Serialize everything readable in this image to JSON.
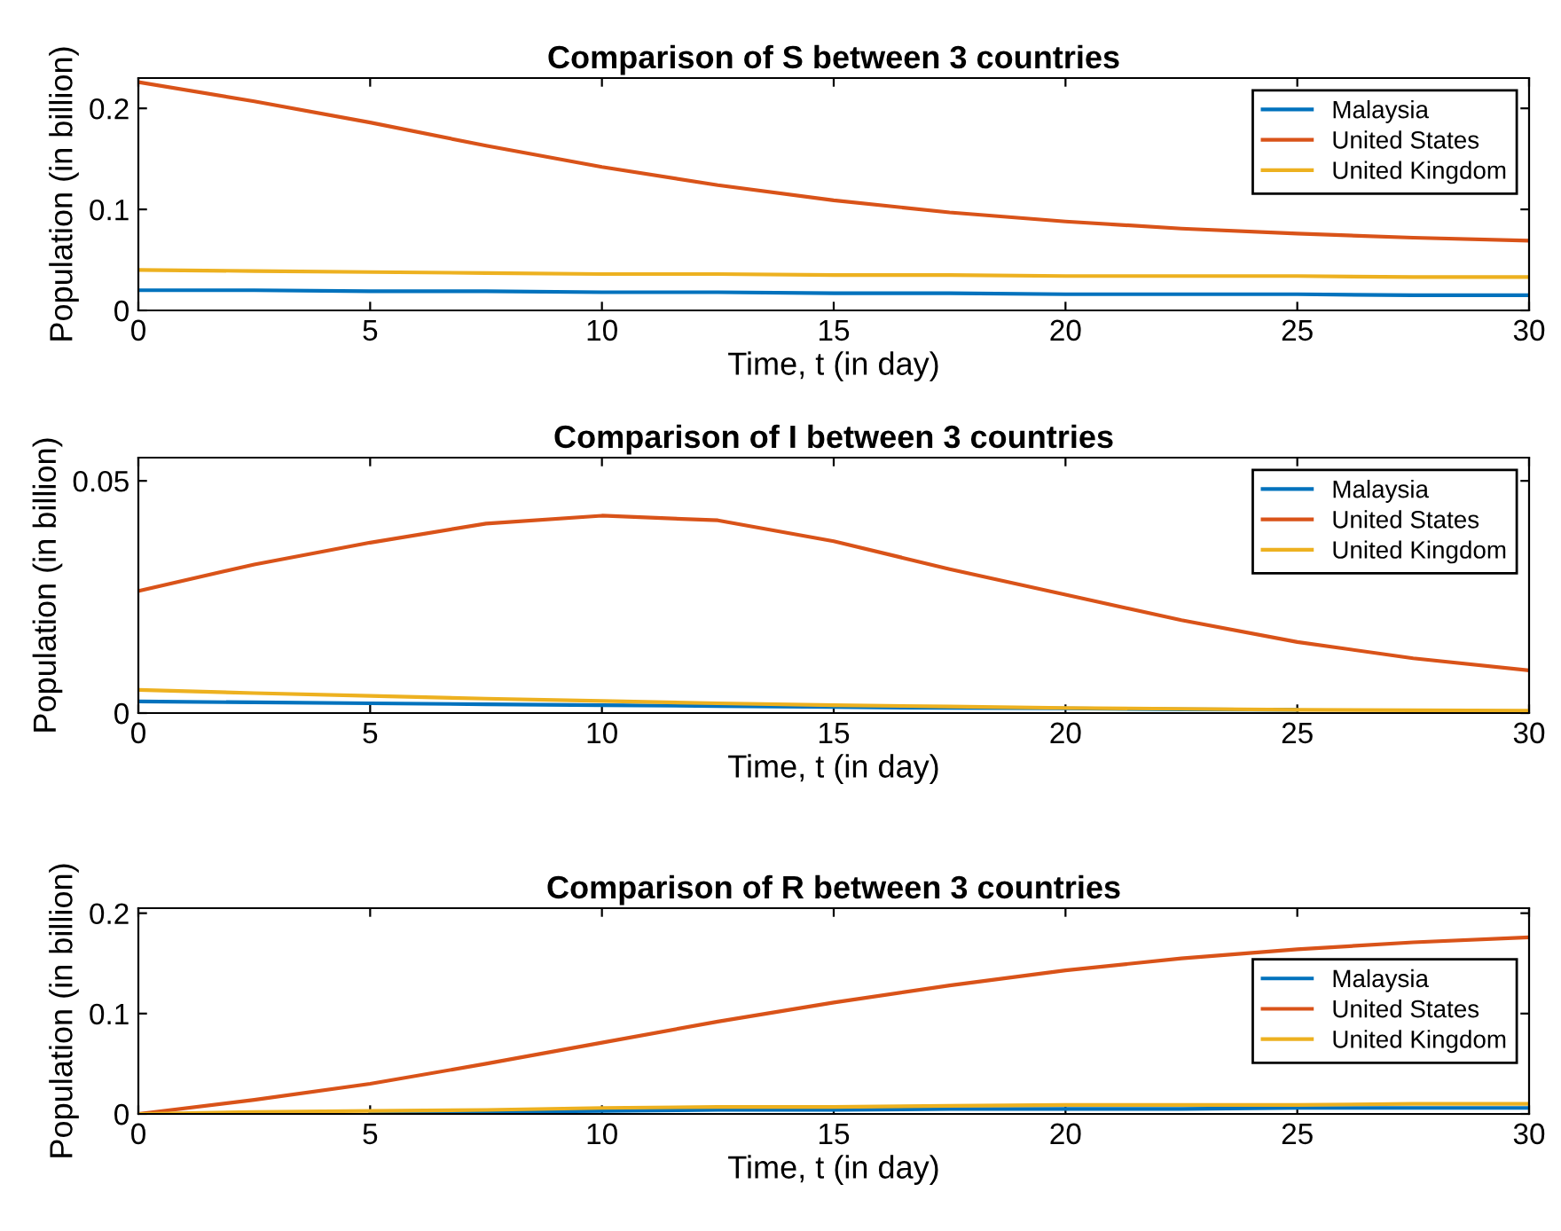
{
  "chart_data": [
    {
      "type": "line",
      "title": "Comparison of S between 3 countries",
      "xlabel": "Time, t (in day)",
      "ylabel": "Population (in billion)",
      "x": [
        0,
        2.5,
        5,
        7.5,
        10,
        12.5,
        15,
        17.5,
        20,
        22.5,
        25,
        27.5,
        30
      ],
      "xlim": [
        0,
        30
      ],
      "xticks": [
        0,
        5,
        10,
        15,
        20,
        25,
        30
      ],
      "ylim": [
        0,
        0.23
      ],
      "yticks": [
        0,
        0.1,
        0.2
      ],
      "legend": "top right",
      "grid": false,
      "series": [
        {
          "name": "Malaysia",
          "color": "#0072bd",
          "values": [
            0.02,
            0.02,
            0.019,
            0.019,
            0.018,
            0.018,
            0.017,
            0.017,
            0.016,
            0.016,
            0.016,
            0.015,
            0.015
          ]
        },
        {
          "name": "United States",
          "color": "#d95319",
          "values": [
            0.226,
            0.207,
            0.186,
            0.163,
            0.142,
            0.124,
            0.109,
            0.097,
            0.088,
            0.081,
            0.076,
            0.072,
            0.069
          ]
        },
        {
          "name": "United Kingdom",
          "color": "#edb120",
          "values": [
            0.04,
            0.039,
            0.038,
            0.037,
            0.036,
            0.036,
            0.035,
            0.035,
            0.034,
            0.034,
            0.034,
            0.033,
            0.033
          ]
        }
      ]
    },
    {
      "type": "line",
      "title": "Comparison of I between 3 countries",
      "xlabel": "Time, t (in day)",
      "ylabel": "Population (in billion)",
      "x": [
        0,
        2.5,
        5,
        7.5,
        10,
        12.5,
        15,
        17.5,
        20,
        22.5,
        25,
        27.5,
        30
      ],
      "xlim": [
        0,
        30
      ],
      "xticks": [
        0,
        5,
        10,
        15,
        20,
        25,
        30
      ],
      "ylim": [
        0,
        0.055
      ],
      "yticks": [
        0,
        0.05
      ],
      "legend": "top right",
      "grid": false,
      "series": [
        {
          "name": "Malaysia",
          "color": "#0072bd",
          "values": [
            0.0025,
            0.0023,
            0.0021,
            0.0019,
            0.0017,
            0.0015,
            0.0013,
            0.0011,
            0.001,
            0.0008,
            0.0007,
            null,
            null
          ]
        },
        {
          "name": "United States",
          "color": "#d95319",
          "values": [
            0.0263,
            0.032,
            0.0367,
            0.0408,
            0.0425,
            0.0415,
            0.037,
            0.031,
            0.0255,
            0.02,
            0.0153,
            0.0118,
            0.0092
          ]
        },
        {
          "name": "United Kingdom",
          "color": "#edb120",
          "values": [
            0.005,
            0.0043,
            0.0037,
            0.0031,
            0.0026,
            0.0021,
            0.0017,
            0.0014,
            0.0011,
            0.0009,
            0.0007,
            0.0006,
            0.0005
          ]
        }
      ]
    },
    {
      "type": "line",
      "title": "Comparison of R between 3 countries",
      "xlabel": "Time, t (in day)",
      "ylabel": "Population (in billion)",
      "x": [
        0,
        2.5,
        5,
        7.5,
        10,
        12.5,
        15,
        17.5,
        20,
        22.5,
        25,
        27.5,
        30
      ],
      "xlim": [
        0,
        30
      ],
      "xticks": [
        0,
        5,
        10,
        15,
        20,
        25,
        30
      ],
      "ylim": [
        0,
        0.205
      ],
      "yticks": [
        0,
        0.1,
        0.2
      ],
      "legend": "right",
      "grid": false,
      "series": [
        {
          "name": "Malaysia",
          "color": "#0072bd",
          "values": [
            null,
            null,
            0.002,
            0.002,
            0.003,
            0.004,
            0.004,
            0.005,
            0.005,
            0.005,
            0.006,
            0.006,
            0.006
          ]
        },
        {
          "name": "United States",
          "color": "#d95319",
          "values": [
            0,
            0.014,
            0.03,
            0.05,
            0.071,
            0.092,
            0.111,
            0.128,
            0.143,
            0.155,
            0.164,
            0.171,
            0.176
          ]
        },
        {
          "name": "United Kingdom",
          "color": "#edb120",
          "values": [
            0,
            0.002,
            0.003,
            0.004,
            0.006,
            0.007,
            0.007,
            0.008,
            0.009,
            0.009,
            0.009,
            0.01,
            0.01
          ]
        }
      ]
    }
  ]
}
